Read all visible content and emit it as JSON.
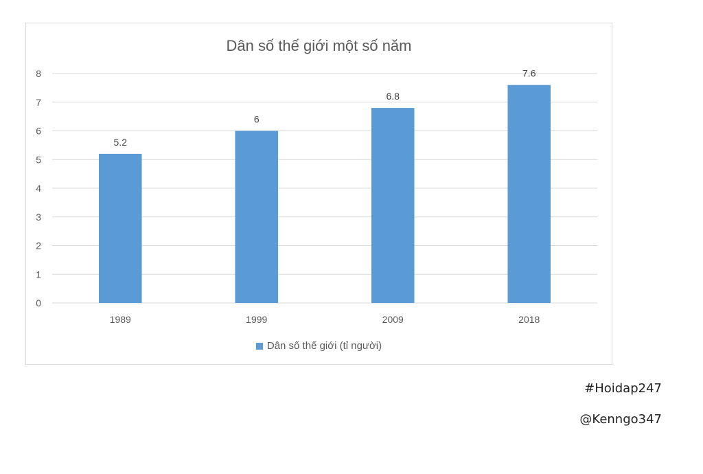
{
  "chart_data": {
    "type": "bar",
    "title": "Dân số thế giới một số năm",
    "categories": [
      "1989",
      "1999",
      "2009",
      "2018"
    ],
    "series": [
      {
        "name": "Dân số thế giới (tỉ người)",
        "values": [
          5.2,
          6,
          6.8,
          7.6
        ],
        "color": "#5b9bd5"
      }
    ],
    "data_labels": [
      "5.2",
      "6",
      "6.8",
      "7.6"
    ],
    "ylim": [
      0,
      8
    ],
    "yticks": [
      0,
      1,
      2,
      3,
      4,
      5,
      6,
      7,
      8
    ],
    "xlabel": "",
    "ylabel": "",
    "grid": true,
    "legend_position": "bottom"
  },
  "watermarks": {
    "line1": "#Hoidap247",
    "line2": "@Kenngo347"
  }
}
